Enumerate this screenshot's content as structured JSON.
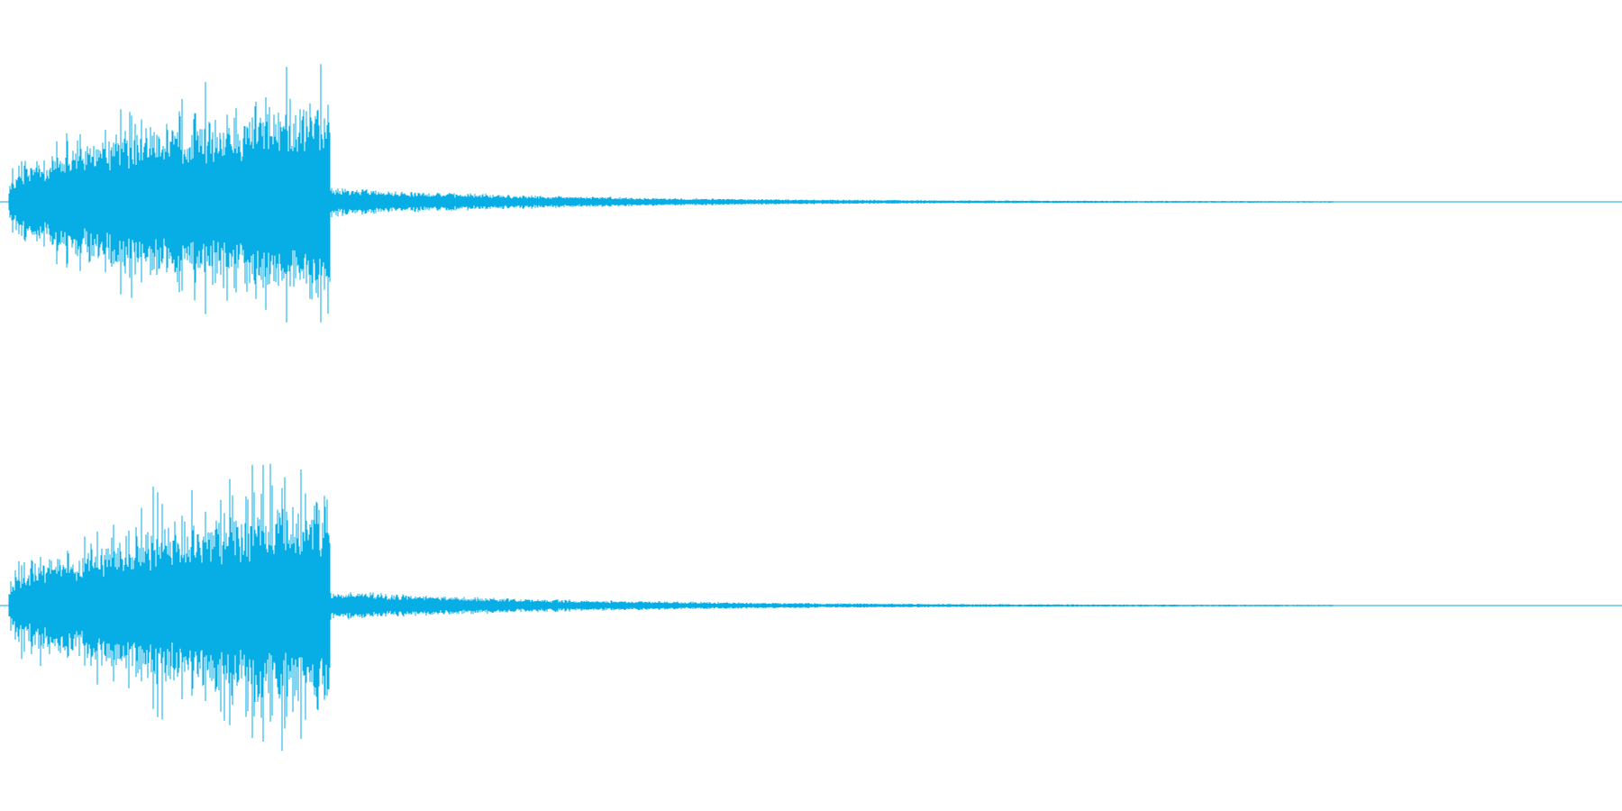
{
  "waveform": {
    "color": "#06aee5",
    "background": "#ffffff",
    "channels": [
      {
        "id": "left",
        "peak": 0.97,
        "attack_end": 0.2,
        "tail_end": 0.83
      },
      {
        "id": "right",
        "peak": 0.98,
        "attack_end": 0.2,
        "tail_end": 0.83
      }
    ]
  }
}
